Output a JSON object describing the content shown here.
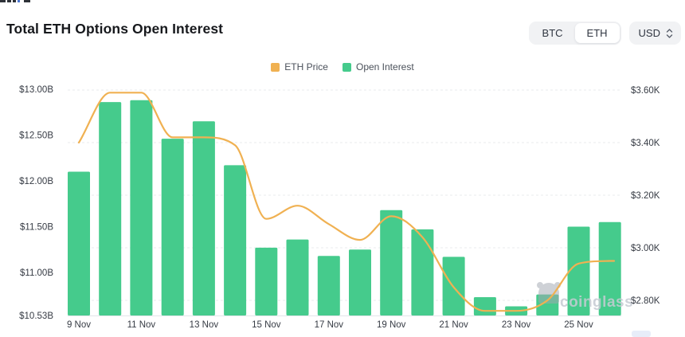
{
  "title": "Total ETH Options Open Interest",
  "controls": {
    "coin_toggle": {
      "options": [
        "BTC",
        "ETH"
      ],
      "selected": "ETH"
    },
    "currency_select": {
      "value": "USD"
    }
  },
  "legend": {
    "items": [
      {
        "label": "ETH Price",
        "color": "#F0B152"
      },
      {
        "label": "Open Interest",
        "color": "#45CB8C"
      }
    ]
  },
  "watermark": {
    "text": "coinglass"
  },
  "chart_data": {
    "type": "bar+line",
    "categories": [
      "9 Nov",
      "10 Nov",
      "11 Nov",
      "12 Nov",
      "13 Nov",
      "14 Nov",
      "15 Nov",
      "16 Nov",
      "17 Nov",
      "18 Nov",
      "19 Nov",
      "20 Nov",
      "21 Nov",
      "22 Nov",
      "23 Nov",
      "24 Nov",
      "25 Nov",
      "26 Nov"
    ],
    "x_axis": {
      "visible_tick_labels": [
        "9 Nov",
        "11 Nov",
        "13 Nov",
        "15 Nov",
        "17 Nov",
        "19 Nov",
        "21 Nov",
        "23 Nov",
        "25 Nov"
      ],
      "label_every": 2
    },
    "series": [
      {
        "name": "Open Interest",
        "type": "bar",
        "y_axis": "left",
        "unit": "USD billions",
        "color": "#45CB8C",
        "values": [
          12.1,
          12.86,
          12.88,
          12.46,
          12.65,
          12.17,
          11.27,
          11.36,
          11.18,
          11.25,
          11.68,
          11.47,
          11.17,
          10.73,
          10.63,
          10.76,
          11.5,
          11.55
        ]
      },
      {
        "name": "ETH Price",
        "type": "line",
        "y_axis": "right",
        "unit": "USD thousands",
        "color": "#F0B152",
        "values": [
          3.4,
          3.59,
          3.59,
          3.42,
          3.42,
          3.39,
          3.11,
          3.16,
          3.09,
          3.03,
          3.12,
          3.04,
          2.85,
          2.76,
          2.76,
          2.8,
          2.94,
          2.95
        ]
      }
    ],
    "left_axis": {
      "min": 10.53,
      "max": 13.0,
      "ticks": [
        {
          "label": "$13.00B",
          "value": 13.0
        },
        {
          "label": "$12.50B",
          "value": 12.5
        },
        {
          "label": "$12.00B",
          "value": 12.0
        },
        {
          "label": "$11.50B",
          "value": 11.5
        },
        {
          "label": "$11.00B",
          "value": 11.0
        },
        {
          "label": "$10.53B",
          "value": 10.53
        }
      ]
    },
    "right_axis": {
      "min": 2.8,
      "max": 3.6,
      "ticks": [
        {
          "label": "$3.60K",
          "value": 3.6
        },
        {
          "label": "$3.40K",
          "value": 3.4
        },
        {
          "label": "$3.20K",
          "value": 3.2
        },
        {
          "label": "$3.00K",
          "value": 3.0
        },
        {
          "label": "$2.80K",
          "value": 2.8
        }
      ]
    },
    "grid": {
      "style": "dashed",
      "aligned_to": "right_axis"
    }
  }
}
